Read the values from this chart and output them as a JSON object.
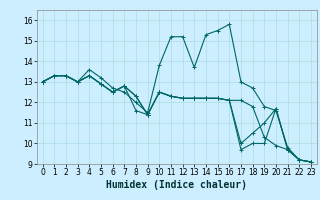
{
  "title": "",
  "xlabel": "Humidex (Indice chaleur)",
  "bg_color": "#cceeff",
  "line_color": "#006666",
  "xlim": [
    -0.5,
    23.5
  ],
  "ylim": [
    9,
    16.5
  ],
  "xticks": [
    0,
    1,
    2,
    3,
    4,
    5,
    6,
    7,
    8,
    9,
    10,
    11,
    12,
    13,
    14,
    15,
    16,
    17,
    18,
    19,
    20,
    21,
    22,
    23
  ],
  "yticks": [
    9,
    10,
    11,
    12,
    13,
    14,
    15,
    16
  ],
  "lines": [
    {
      "x": [
        0,
        1,
        2,
        3,
        4,
        5,
        6,
        7,
        8,
        9,
        10,
        11,
        12,
        13,
        14,
        15,
        16,
        17,
        18,
        19,
        20,
        21,
        22,
        23
      ],
      "y": [
        13.0,
        13.3,
        13.3,
        13.0,
        13.6,
        13.2,
        12.7,
        12.5,
        12.0,
        11.5,
        13.8,
        15.2,
        15.2,
        13.7,
        15.3,
        15.5,
        15.8,
        13.0,
        12.7,
        11.8,
        11.6,
        9.8,
        9.2,
        9.1
      ]
    },
    {
      "x": [
        0,
        1,
        2,
        3,
        4,
        5,
        6,
        7,
        8,
        9,
        10,
        11,
        12,
        13,
        14,
        15,
        16,
        17,
        18,
        19,
        20,
        21,
        22,
        23
      ],
      "y": [
        13.0,
        13.3,
        13.3,
        13.0,
        13.3,
        12.9,
        12.5,
        12.8,
        12.3,
        11.4,
        12.5,
        12.3,
        12.2,
        12.2,
        12.2,
        12.2,
        12.1,
        12.1,
        11.8,
        10.3,
        9.9,
        9.7,
        9.2,
        9.1
      ]
    },
    {
      "x": [
        0,
        1,
        2,
        3,
        4,
        5,
        6,
        7,
        8,
        9,
        10,
        11,
        12,
        13,
        14,
        15,
        16,
        17,
        18,
        19,
        20,
        21,
        22,
        23
      ],
      "y": [
        13.0,
        13.3,
        13.3,
        13.0,
        13.3,
        12.9,
        12.5,
        12.8,
        12.3,
        11.4,
        12.5,
        12.3,
        12.2,
        12.2,
        12.2,
        12.2,
        12.1,
        10.0,
        10.5,
        11.0,
        11.7,
        9.7,
        9.2,
        9.1
      ]
    },
    {
      "x": [
        0,
        1,
        2,
        3,
        4,
        5,
        6,
        7,
        8,
        9,
        10,
        11,
        12,
        13,
        14,
        15,
        16,
        17,
        18,
        19,
        20,
        21,
        22,
        23
      ],
      "y": [
        13.0,
        13.3,
        13.3,
        13.0,
        13.3,
        12.9,
        12.5,
        12.8,
        11.6,
        11.4,
        12.5,
        12.3,
        12.2,
        12.2,
        12.2,
        12.2,
        12.1,
        9.7,
        10.0,
        10.0,
        11.7,
        9.7,
        9.2,
        9.1
      ]
    }
  ],
  "marker": "+",
  "markersize": 3,
  "linewidth": 0.8,
  "xlabel_fontsize": 7,
  "tick_fontsize": 5.5,
  "grid_color": "#aadddd"
}
